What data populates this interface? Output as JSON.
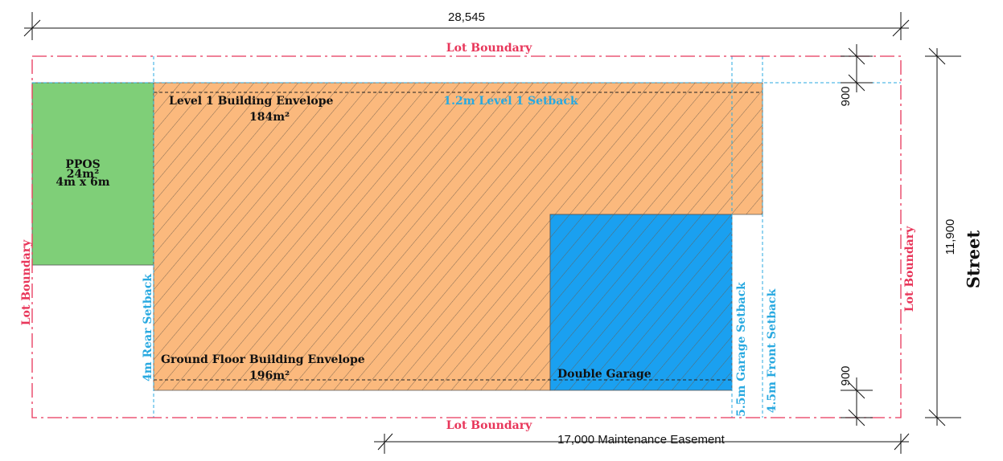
{
  "dimensions": {
    "total_width": "28,545",
    "depth": "11,900",
    "top_offset": "900",
    "bottom_offset": "900",
    "easement": "17,000 Maintenance Easement"
  },
  "boundaries": {
    "top": "Lot Boundary",
    "bottom": "Lot Boundary",
    "left": "Lot Boundary",
    "right": "Lot Boundary"
  },
  "street": "Street",
  "ppos": {
    "title": "PPOS",
    "area": "24m²",
    "size": "4m x 6m"
  },
  "level1": {
    "title": "Level 1 Building Envelope",
    "area": "184m²",
    "setback": "1.2m Level 1 Setback"
  },
  "ground": {
    "title": "Ground Floor Building Envelope",
    "area": "196m²"
  },
  "garage": "Double Garage",
  "setbacks": {
    "rear": "4m Rear Setback",
    "garage": "5.5m Garage Setback",
    "front": "4.5m Front Setback"
  }
}
